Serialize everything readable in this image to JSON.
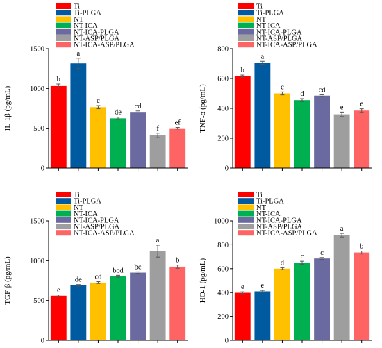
{
  "legend": {
    "entries": [
      "Ti",
      "Ti-PLGA",
      "NT",
      "NT-ICA",
      "NT-ICA-PLGA",
      "NT-ASP/PLGA",
      "NT-ICA-ASP/PLGA"
    ],
    "colors": [
      "#ff0000",
      "#005aa0",
      "#ffc000",
      "#00b050",
      "#6a6aa0",
      "#9e9e9e",
      "#ff6464"
    ]
  },
  "chart_data": [
    {
      "type": "bar",
      "ylabel": "IL-1β (pg/mL)",
      "ylim": [
        0,
        1500
      ],
      "yticks": [
        "0",
        "500",
        "1000",
        "1500"
      ],
      "categories": [
        "Ti",
        "Ti-PLGA",
        "NT",
        "NT-ICA",
        "NT-ICA-PLGA",
        "NT-ASP/PLGA",
        "NT-ICA-ASP/PLGA"
      ],
      "values": [
        1030,
        1315,
        765,
        625,
        705,
        410,
        500
      ],
      "errors": [
        25,
        65,
        20,
        15,
        12,
        28,
        10
      ],
      "significance": [
        "b",
        "a",
        "c",
        "de",
        "cd",
        "f",
        "ef"
      ]
    },
    {
      "type": "bar",
      "ylabel": "TNF-α (pg/mL)",
      "ylim": [
        0,
        800
      ],
      "yticks": [
        "0",
        "200",
        "400",
        "600",
        "800"
      ],
      "categories": [
        "Ti",
        "Ti-PLGA",
        "NT",
        "NT-ICA",
        "NT-ICA-PLGA",
        "NT-ASP/PLGA",
        "NT-ICA-ASP/PLGA"
      ],
      "values": [
        615,
        705,
        500,
        455,
        485,
        360,
        385
      ],
      "errors": [
        8,
        10,
        10,
        10,
        6,
        15,
        12
      ],
      "significance": [
        "b",
        "a",
        "c",
        "d",
        "cd",
        "e",
        "e"
      ]
    },
    {
      "type": "bar",
      "ylabel": "TGF-β (pg/mL)",
      "ylim": [
        0,
        1500
      ],
      "yticks": [
        "0",
        "500",
        "1000",
        "1500"
      ],
      "categories": [
        "Ti",
        "Ti-PLGA",
        "NT",
        "NT-ICA",
        "NT-ICA-PLGA",
        "NT-ASP/PLGA",
        "NT-ICA-ASP/PLGA"
      ],
      "values": [
        560,
        690,
        725,
        805,
        850,
        1120,
        925
      ],
      "errors": [
        10,
        10,
        12,
        12,
        10,
        75,
        20
      ],
      "significance": [
        "e",
        "de",
        "cd",
        "bcd",
        "bc",
        "a",
        "b"
      ]
    },
    {
      "type": "bar",
      "ylabel": "HO-1 (pg/mL)",
      "ylim": [
        0,
        1000
      ],
      "yticks": [
        "0",
        "200",
        "400",
        "600",
        "800",
        "1000"
      ],
      "categories": [
        "Ti",
        "Ti-PLGA",
        "NT",
        "NT-ICA",
        "NT-ICA-PLGA",
        "NT-ASP/PLGA",
        "NT-ICA-ASP/PLGA"
      ],
      "values": [
        398,
        410,
        600,
        650,
        685,
        880,
        735
      ],
      "errors": [
        8,
        8,
        8,
        12,
        8,
        15,
        12
      ],
      "significance": [
        "e",
        "e",
        "d",
        "c",
        "c",
        "a",
        "b"
      ]
    }
  ]
}
